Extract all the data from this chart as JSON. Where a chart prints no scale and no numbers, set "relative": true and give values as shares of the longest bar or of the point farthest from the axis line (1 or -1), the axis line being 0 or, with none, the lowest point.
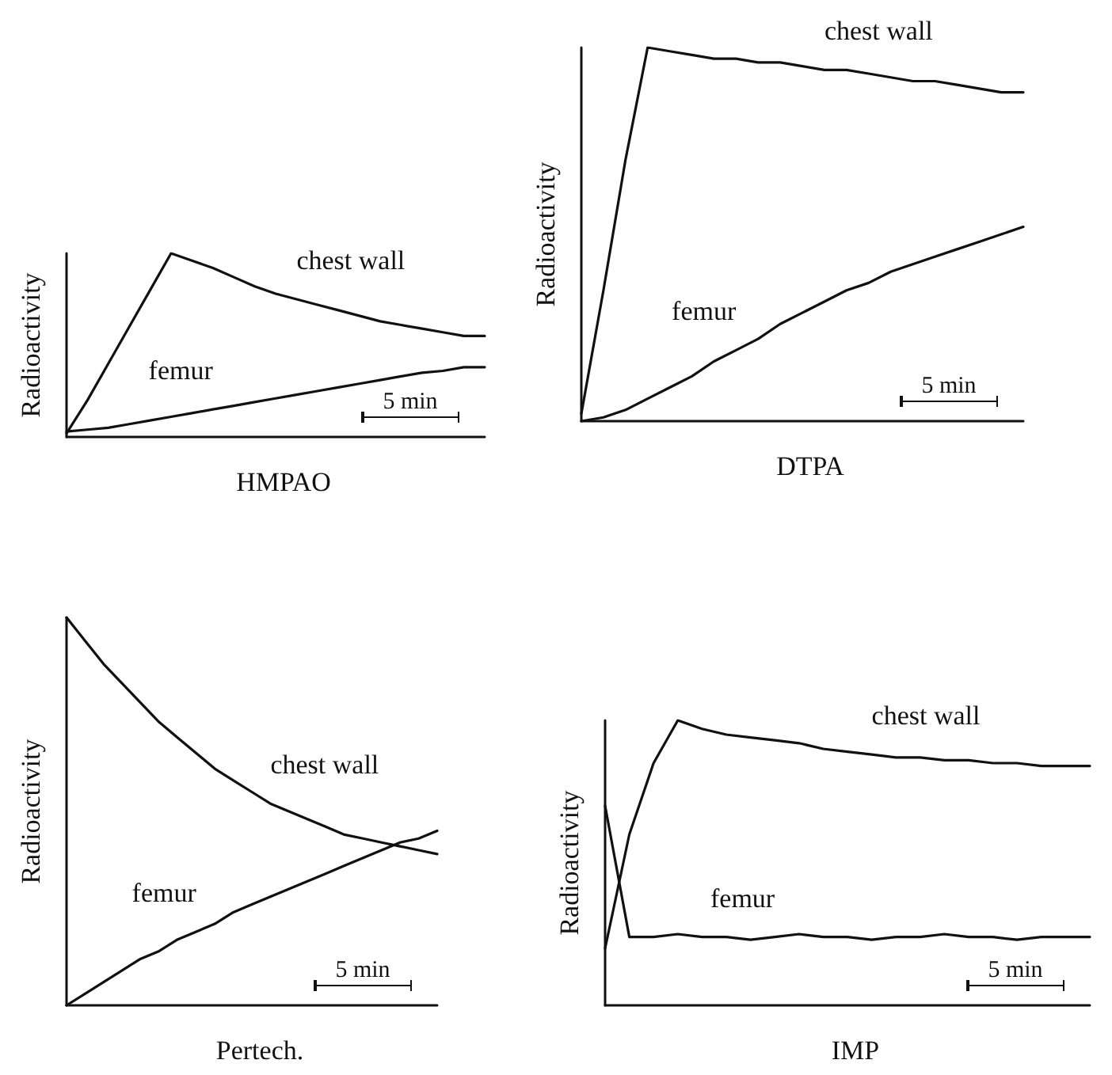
{
  "chart_data": [
    {
      "type": "line",
      "title": "HMPAO",
      "ylabel": "Radioactivity",
      "relative": true,
      "legend": false,
      "marker": "none",
      "annotations": [
        "5 min"
      ],
      "categories": [
        null,
        null,
        null,
        null,
        null,
        null,
        null,
        null,
        null,
        null,
        null,
        null,
        null,
        null,
        null,
        null,
        null,
        null,
        null,
        null,
        null
      ],
      "series": [
        {
          "name": "chest wall",
          "color": "#111111",
          "values": [
            0.02,
            0.2,
            0.4,
            0.6,
            0.8,
            1.0,
            0.96,
            0.92,
            0.87,
            0.82,
            0.78,
            0.75,
            0.72,
            0.69,
            0.66,
            0.63,
            0.61,
            0.59,
            0.57,
            0.55,
            0.55
          ]
        },
        {
          "name": "femur",
          "color": "#111111",
          "values": [
            0.03,
            0.04,
            0.05,
            0.07,
            0.09,
            0.11,
            0.13,
            0.15,
            0.17,
            0.19,
            0.21,
            0.23,
            0.25,
            0.27,
            0.29,
            0.31,
            0.33,
            0.35,
            0.36,
            0.38,
            0.38
          ]
        }
      ]
    },
    {
      "type": "line",
      "title": "DTPA",
      "ylabel": "Radioactivity",
      "relative": true,
      "legend": false,
      "marker": "none",
      "annotations": [
        "5 min"
      ],
      "categories": [
        null,
        null,
        null,
        null,
        null,
        null,
        null,
        null,
        null,
        null,
        null,
        null,
        null,
        null,
        null,
        null,
        null,
        null,
        null,
        null,
        null
      ],
      "series": [
        {
          "name": "chest wall",
          "color": "#111111",
          "values": [
            0.02,
            0.35,
            0.7,
            1.0,
            0.99,
            0.98,
            0.97,
            0.97,
            0.96,
            0.96,
            0.95,
            0.94,
            0.94,
            0.93,
            0.92,
            0.91,
            0.91,
            0.9,
            0.89,
            0.88,
            0.88
          ]
        },
        {
          "name": "femur",
          "color": "#111111",
          "values": [
            0,
            0.01,
            0.03,
            0.06,
            0.09,
            0.12,
            0.16,
            0.19,
            0.22,
            0.26,
            0.29,
            0.32,
            0.35,
            0.37,
            0.4,
            0.42,
            0.44,
            0.46,
            0.48,
            0.5,
            0.52
          ]
        }
      ]
    },
    {
      "type": "line",
      "title": "Pertech.",
      "ylabel": "Radioactivity",
      "relative": true,
      "legend": false,
      "marker": "none",
      "annotations": [
        "5 min"
      ],
      "categories": [
        null,
        null,
        null,
        null,
        null,
        null,
        null,
        null,
        null,
        null,
        null,
        null,
        null,
        null,
        null,
        null,
        null,
        null,
        null,
        null,
        null
      ],
      "series": [
        {
          "name": "chest wall",
          "color": "#111111",
          "values": [
            1.0,
            0.94,
            0.88,
            0.83,
            0.78,
            0.73,
            0.69,
            0.65,
            0.61,
            0.58,
            0.55,
            0.52,
            0.5,
            0.48,
            0.46,
            0.44,
            0.43,
            0.42,
            0.41,
            0.4,
            0.39
          ]
        },
        {
          "name": "femur",
          "color": "#111111",
          "values": [
            0,
            0.03,
            0.06,
            0.09,
            0.12,
            0.14,
            0.17,
            0.19,
            0.21,
            0.24,
            0.26,
            0.28,
            0.3,
            0.32,
            0.34,
            0.36,
            0.38,
            0.4,
            0.42,
            0.43,
            0.45
          ]
        }
      ]
    },
    {
      "type": "line",
      "title": "IMP",
      "ylabel": "Radioactivity",
      "relative": true,
      "legend": false,
      "marker": "none",
      "annotations": [
        "5 min"
      ],
      "categories": [
        null,
        null,
        null,
        null,
        null,
        null,
        null,
        null,
        null,
        null,
        null,
        null,
        null,
        null,
        null,
        null,
        null,
        null,
        null,
        null,
        null
      ],
      "series": [
        {
          "name": "chest wall",
          "color": "#111111",
          "values": [
            0.2,
            0.6,
            0.85,
            1.0,
            0.97,
            0.95,
            0.94,
            0.93,
            0.92,
            0.9,
            0.89,
            0.88,
            0.87,
            0.87,
            0.86,
            0.86,
            0.85,
            0.85,
            0.84,
            0.84,
            0.84
          ]
        },
        {
          "name": "femur",
          "color": "#111111",
          "values": [
            0.7,
            0.24,
            0.24,
            0.25,
            0.24,
            0.24,
            0.23,
            0.24,
            0.25,
            0.24,
            0.24,
            0.23,
            0.24,
            0.24,
            0.25,
            0.24,
            0.24,
            0.23,
            0.24,
            0.24,
            0.24
          ]
        }
      ]
    }
  ]
}
